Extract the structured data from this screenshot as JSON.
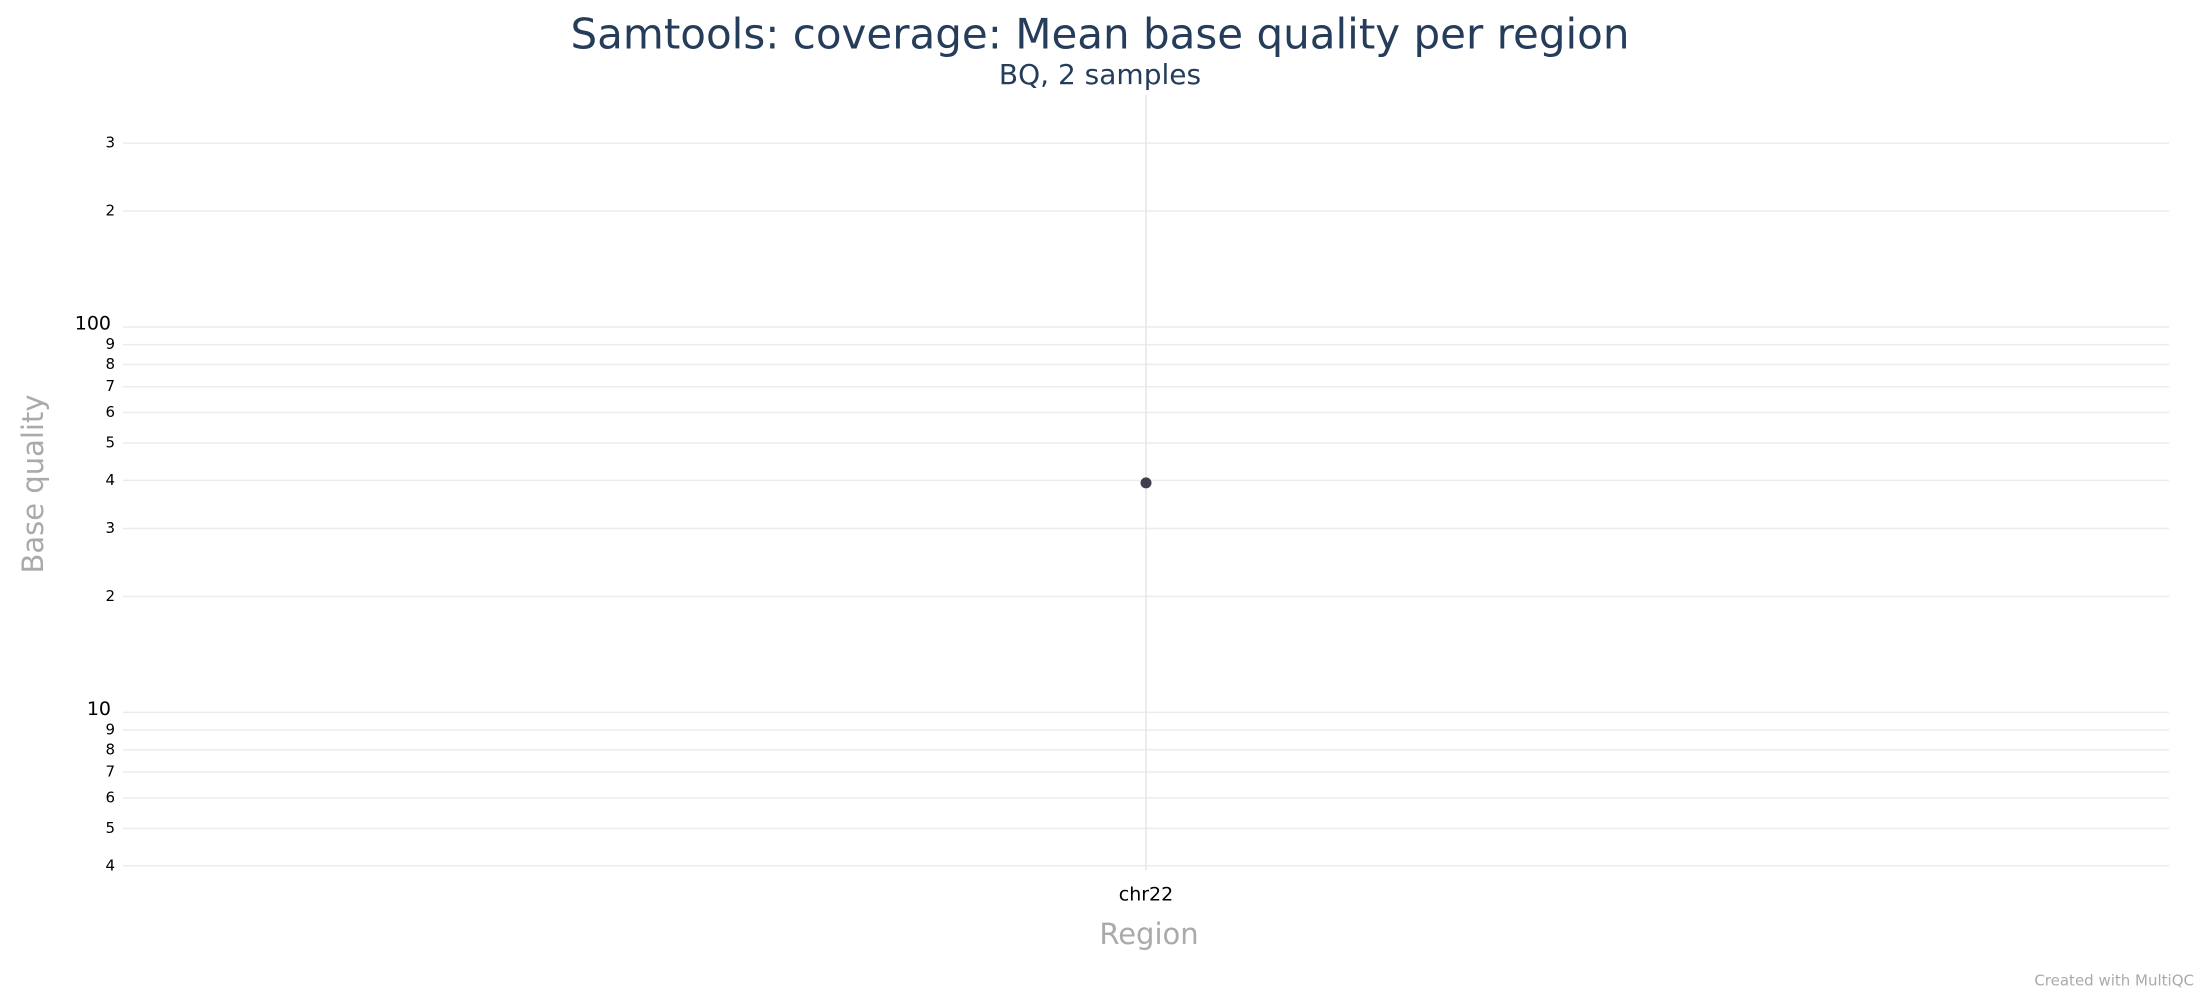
{
  "chart_data": {
    "type": "scatter",
    "title": "Samtools: coverage: Mean base quality per region",
    "subtitle": "BQ, 2 samples",
    "x_label": "Region",
    "y_label": "Base quality",
    "credit": "Created with MultiQC",
    "categories": [
      "chr22"
    ],
    "values": [
      39.4
    ],
    "color": "#3f3f4f",
    "log_y": true,
    "grid": true,
    "ylim": [
      3.9,
      400
    ],
    "yticks": [
      4,
      5,
      6,
      7,
      8,
      9,
      10,
      {
        "value": 20,
        "label": "2"
      },
      {
        "value": 30,
        "label": "3"
      },
      {
        "value": 40,
        "label": "4"
      },
      {
        "value": 50,
        "label": "5"
      },
      {
        "value": 60,
        "label": "6"
      },
      {
        "value": 70,
        "label": "7"
      },
      {
        "value": 80,
        "label": "8"
      },
      {
        "value": 90,
        "label": "9"
      },
      100,
      {
        "value": 200,
        "label": "2"
      },
      {
        "value": 300,
        "label": "3"
      }
    ]
  }
}
